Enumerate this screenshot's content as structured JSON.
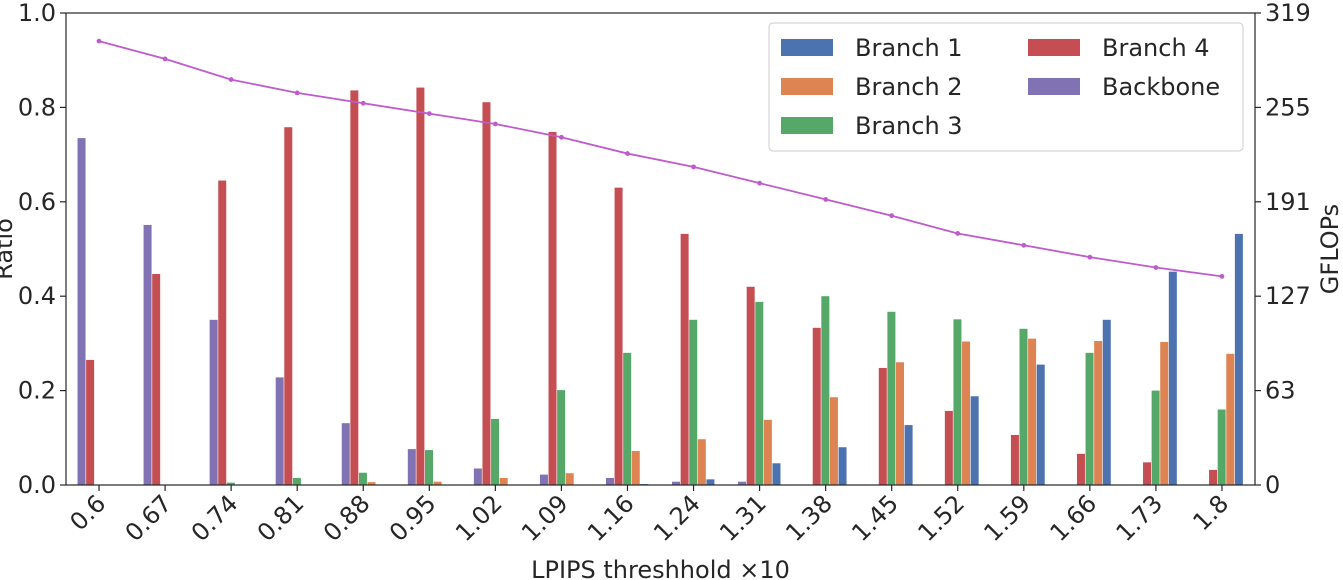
{
  "chart_data": {
    "type": "bar",
    "xlabel": "LPIPS threshhold ×10",
    "ylabel": "Ratio",
    "y2label": "GFLOPs",
    "ylim": [
      0,
      1.0
    ],
    "y2lim": [
      0,
      319
    ],
    "yticks": [
      "0.0",
      "0.2",
      "0.4",
      "0.6",
      "0.8",
      "1.0"
    ],
    "y2ticks": [
      "0",
      "63",
      "127",
      "191",
      "255",
      "319"
    ],
    "categories": [
      "0.6",
      "0.67",
      "0.74",
      "0.81",
      "0.88",
      "0.95",
      "1.02",
      "1.09",
      "1.16",
      "1.24",
      "1.31",
      "1.38",
      "1.45",
      "1.52",
      "1.59",
      "1.66",
      "1.73",
      "1.8"
    ],
    "legend_position": "top-right",
    "series": [
      {
        "name": "Backbone",
        "color": "#8172b3",
        "values": [
          0.735,
          0.551,
          0.35,
          0.228,
          0.131,
          0.076,
          0.035,
          0.022,
          0.015,
          0.007,
          0.007,
          0,
          0,
          0,
          0,
          0,
          0,
          0
        ]
      },
      {
        "name": "Branch 4",
        "color": "#c44e52",
        "values": [
          0.265,
          0.447,
          0.645,
          0.758,
          0.836,
          0.842,
          0.811,
          0.748,
          0.63,
          0.532,
          0.42,
          0.333,
          0.248,
          0.157,
          0.106,
          0.066,
          0.048,
          0.032
        ]
      },
      {
        "name": "Branch 3",
        "color": "#55a868",
        "values": [
          0,
          0,
          0.005,
          0.015,
          0.026,
          0.074,
          0.14,
          0.201,
          0.28,
          0.35,
          0.388,
          0.4,
          0.367,
          0.351,
          0.331,
          0.28,
          0.2,
          0.16
        ]
      },
      {
        "name": "Branch 2",
        "color": "#dd8452",
        "values": [
          0,
          0,
          0,
          0,
          0.006,
          0.007,
          0.015,
          0.025,
          0.072,
          0.097,
          0.138,
          0.186,
          0.26,
          0.304,
          0.31,
          0.305,
          0.303,
          0.278
        ]
      },
      {
        "name": "Branch 1",
        "color": "#4c72b0",
        "values": [
          0,
          0,
          0,
          0,
          0,
          0,
          0,
          0,
          0.002,
          0.012,
          0.046,
          0.08,
          0.127,
          0.188,
          0.255,
          0.35,
          0.452,
          0.532
        ]
      }
    ],
    "line": {
      "name": "GFLOPs",
      "color": "#bf5bcc",
      "values": [
        300,
        288,
        274,
        265,
        258,
        251,
        244,
        235,
        224,
        215,
        204,
        193,
        182,
        170,
        162,
        154,
        147,
        141
      ]
    },
    "legend_order": [
      "Branch 1",
      "Branch 2",
      "Branch 3",
      "Branch 4",
      "Backbone"
    ]
  }
}
